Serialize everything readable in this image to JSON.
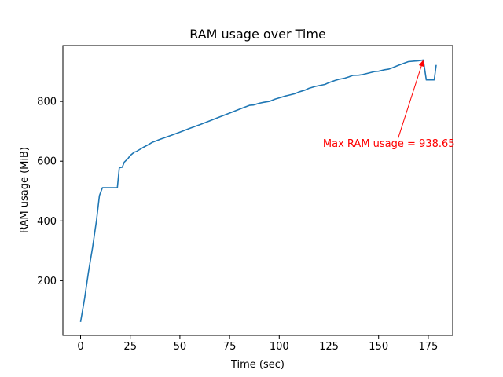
{
  "chart_data": {
    "type": "line",
    "title": "RAM usage over Time",
    "xlabel": "Time (sec)",
    "ylabel": "RAM usage (MiB)",
    "xlim": [
      -8.9,
      187.3
    ],
    "ylim": [
      17,
      987
    ],
    "xticks": [
      0,
      25,
      50,
      75,
      100,
      125,
      150,
      175
    ],
    "yticks": [
      200,
      400,
      600,
      800
    ],
    "grid": false,
    "colors": {
      "line": "#1f77b4",
      "annotation": "#ff0000"
    },
    "series": [
      {
        "x": [
          0,
          2,
          4,
          6,
          8,
          9.5,
          11,
          13,
          15,
          17,
          18.5,
          19.5,
          21,
          22,
          24,
          25,
          27,
          28,
          30,
          32,
          34,
          36,
          38,
          40,
          45,
          50,
          55,
          60,
          65,
          70,
          75,
          80,
          85,
          87,
          90,
          92,
          95,
          98,
          100,
          103,
          105,
          108,
          110,
          113,
          115,
          118,
          120,
          123,
          125,
          128,
          130,
          133,
          135,
          137,
          140,
          142,
          145,
          148,
          150,
          153,
          155,
          157,
          160,
          162,
          165,
          168,
          170,
          172.5,
          174,
          176,
          178,
          179
        ],
        "y": [
          62,
          140,
          230,
          310,
          400,
          485,
          511,
          511,
          511,
          511,
          511,
          578,
          580,
          597,
          610,
          619,
          630,
          632,
          640,
          648,
          655,
          663,
          668,
          673,
          685,
          697,
          710,
          722,
          735,
          748,
          761,
          774,
          787,
          788,
          794,
          797,
          800,
          808,
          812,
          818,
          821,
          826,
          832,
          838,
          844,
          850,
          853,
          857,
          863,
          870,
          874,
          878,
          882,
          887,
          888,
          890,
          895,
          900,
          901,
          906,
          908,
          913,
          921,
          926,
          933,
          935,
          936,
          938.65,
          872,
          872,
          872,
          922
        ]
      }
    ],
    "annotation": {
      "text": "Max RAM usage = 938.65",
      "point": [
        172.5,
        938.65
      ],
      "text_position": [
        122,
        648
      ]
    }
  }
}
